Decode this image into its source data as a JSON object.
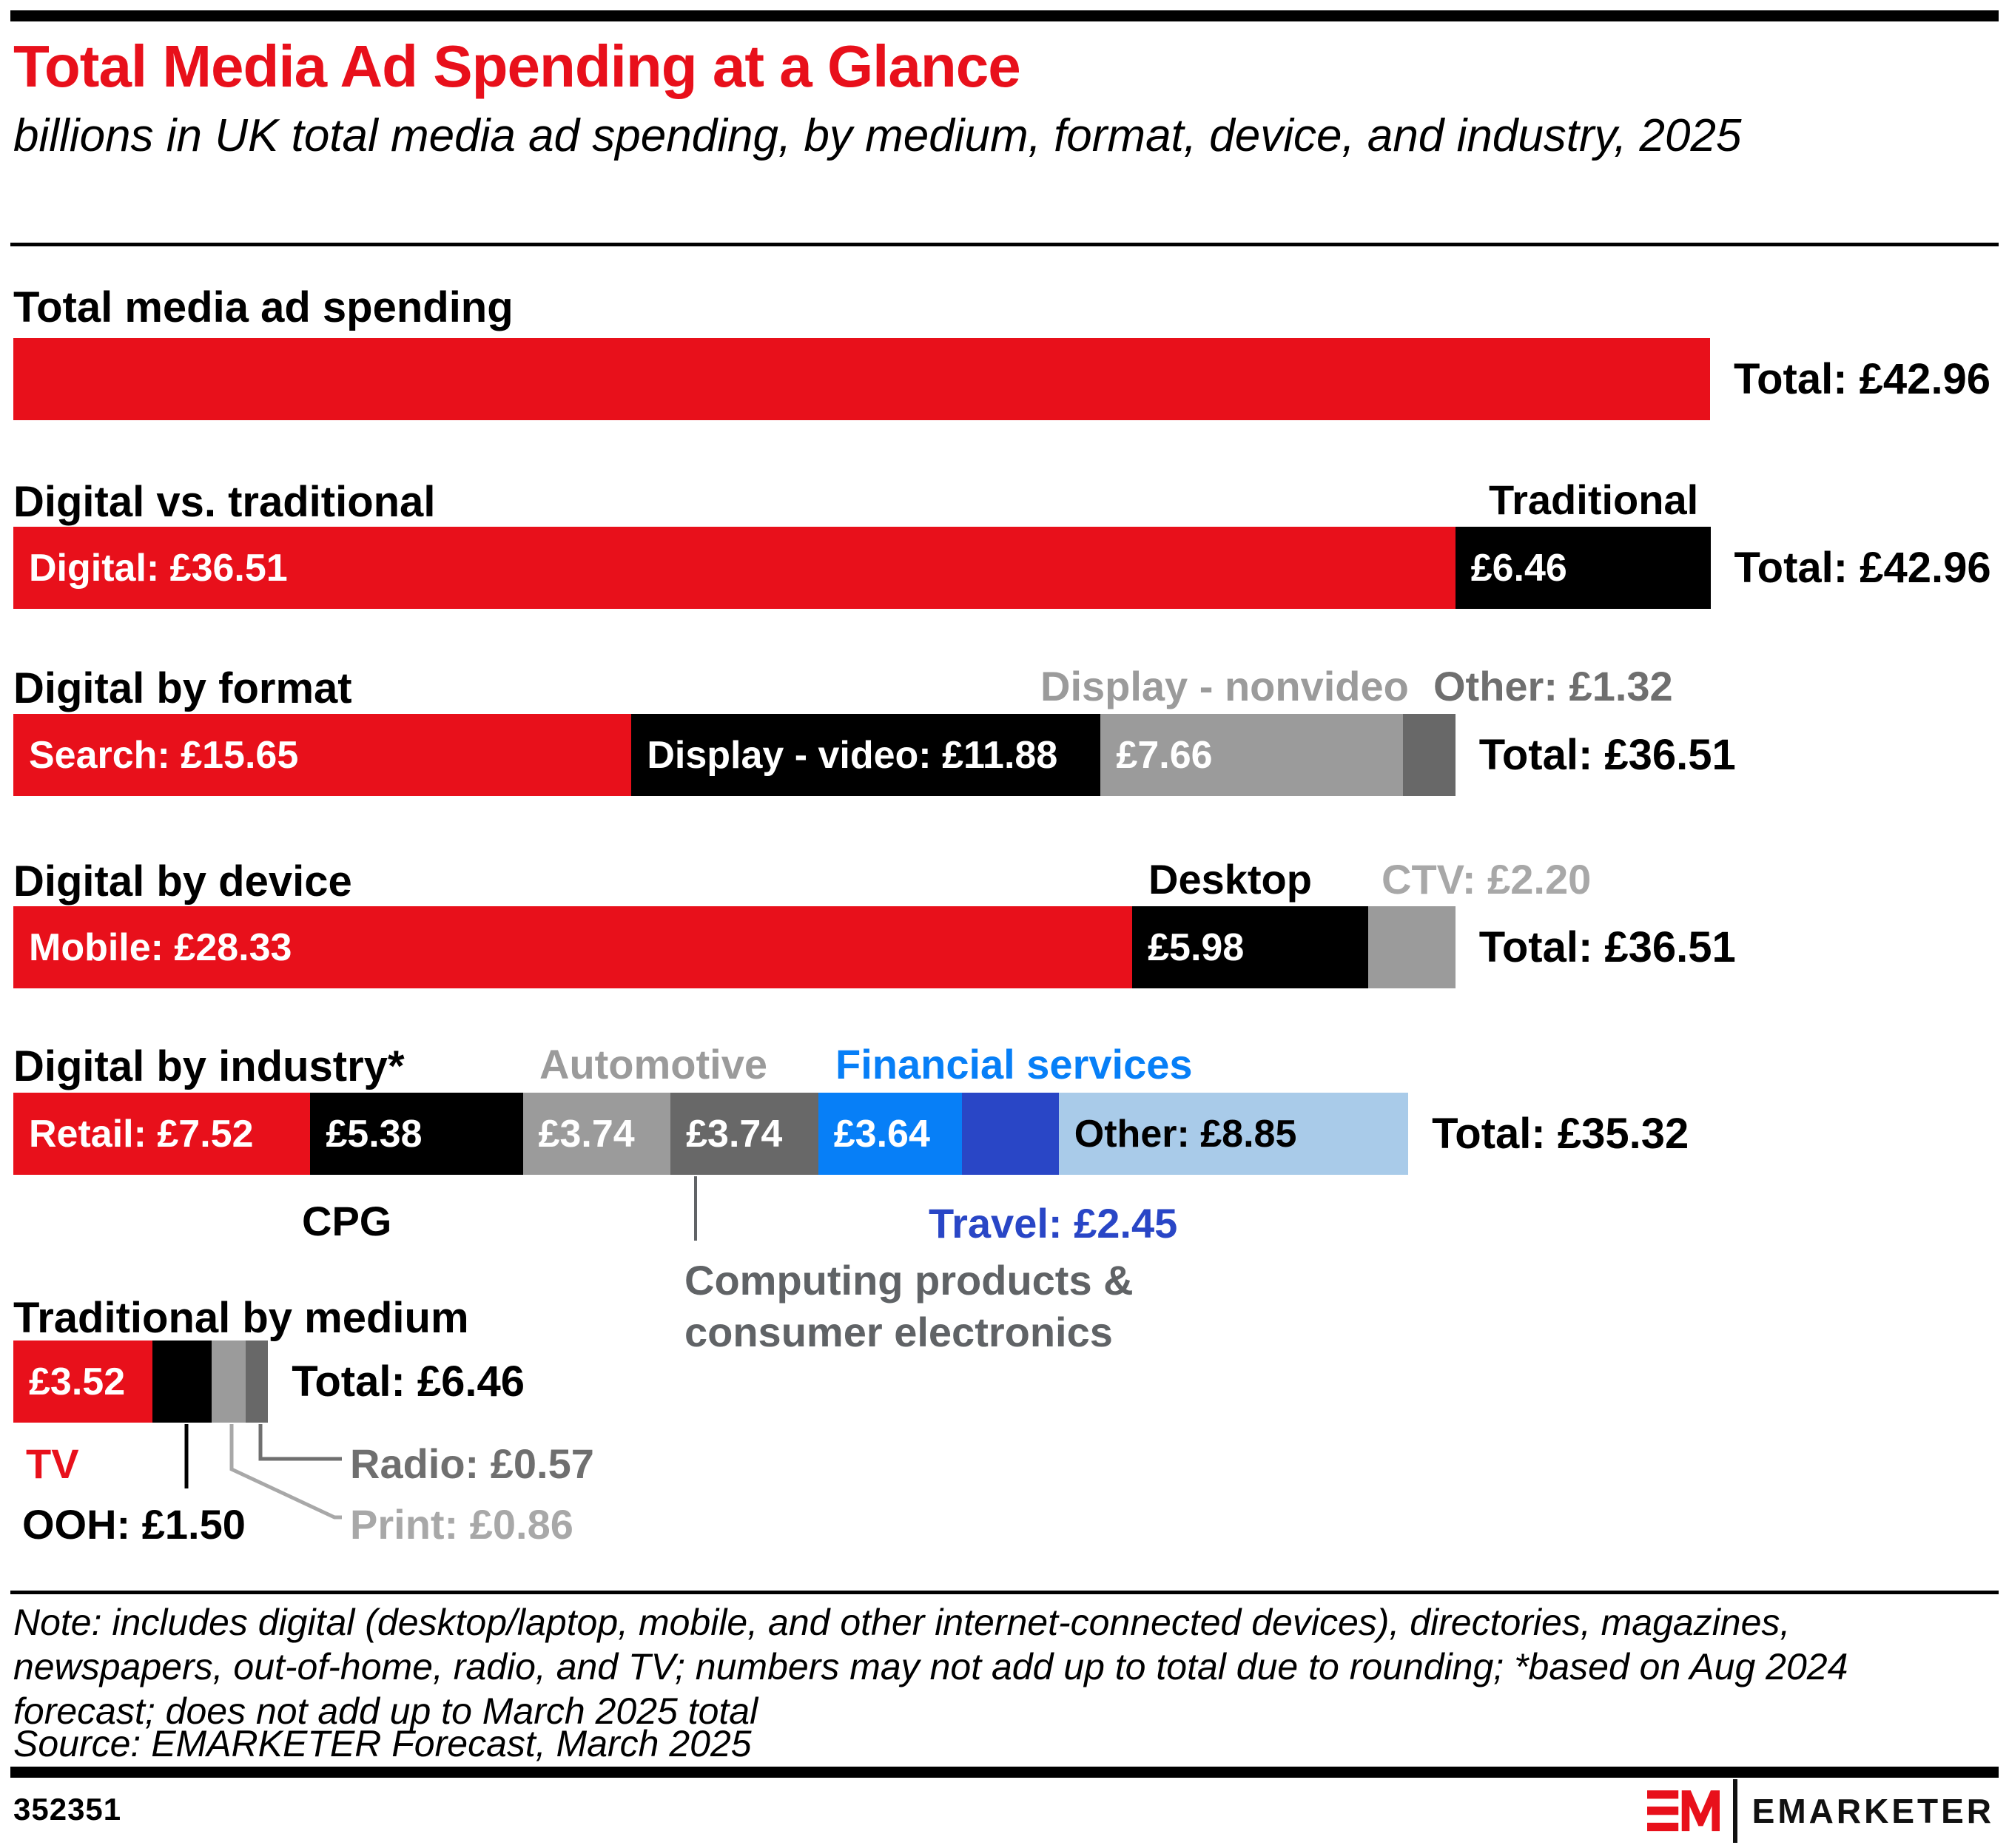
{
  "page": {
    "title": "Total Media Ad Spending at a Glance",
    "subtitle": "billions in UK total media ad spending, by medium, format, device, and industry, 2025",
    "note": "Note: includes digital (desktop/laptop, mobile, and other internet-connected devices), directories, magazines, newspapers, out-of-home, radio, and TV; numbers may not add up to total due to rounding; *based on Aug 2024 forecast; does not add up to March 2025 total",
    "source": "Source: EMARKETER Forecast, March 2025",
    "footer": {
      "chart_id": "352351",
      "brand": "EMARKETER"
    }
  },
  "colors": {
    "red": "#e8101b",
    "black": "#000000",
    "gray": "#9b9b9b",
    "dark_gray": "#686868",
    "blue": "#077ff7",
    "dark_blue": "#2946c6",
    "light_blue": "#a9cbe9",
    "label_gray": "#9b9b9b",
    "label_dark_gray": "#6f6f6f",
    "label_light_gray": "#a8a8a8",
    "computing_gray": "#606366"
  },
  "chart_data": {
    "type": "bar",
    "orientation": "horizontal-stacked",
    "unit": "billions GBP (£)",
    "scale_total": 42.96,
    "sections": [
      {
        "id": "total-media",
        "heading": "Total media ad spending",
        "total_label": "Total: £42.96",
        "total_value": 42.96,
        "segments": [
          {
            "name": "Total media",
            "value": 42.96,
            "color": "red",
            "label": ""
          }
        ]
      },
      {
        "id": "digital-vs-traditional",
        "heading": "Digital vs. traditional",
        "total_label": "Total: £42.96",
        "total_value": 42.96,
        "above_labels": [
          {
            "text": "Traditional"
          }
        ],
        "segments": [
          {
            "name": "Digital",
            "value": 36.51,
            "color": "red",
            "label": "Digital: £36.51"
          },
          {
            "name": "Traditional",
            "value": 6.46,
            "color": "black",
            "label": "£6.46"
          }
        ]
      },
      {
        "id": "digital-by-format",
        "heading": "Digital by format",
        "total_label": "Total: £36.51",
        "total_value": 36.51,
        "above_labels": [
          {
            "text": "Display - nonvideo"
          },
          {
            "text": "Other: £1.32"
          }
        ],
        "segments": [
          {
            "name": "Search",
            "value": 15.65,
            "color": "red",
            "label": "Search: £15.65"
          },
          {
            "name": "Display - video",
            "value": 11.88,
            "color": "black",
            "label": "Display - video: £11.88"
          },
          {
            "name": "Display - nonvideo",
            "value": 7.66,
            "color": "gray",
            "label": "£7.66"
          },
          {
            "name": "Other",
            "value": 1.32,
            "color": "dark_gray",
            "label": ""
          }
        ]
      },
      {
        "id": "digital-by-device",
        "heading": "Digital by device",
        "total_label": "Total: £36.51",
        "total_value": 36.51,
        "above_labels": [
          {
            "text": "Desktop"
          },
          {
            "text": "CTV: £2.20"
          }
        ],
        "segments": [
          {
            "name": "Mobile",
            "value": 28.33,
            "color": "red",
            "label": "Mobile: £28.33"
          },
          {
            "name": "Desktop",
            "value": 5.98,
            "color": "black",
            "label": "£5.98"
          },
          {
            "name": "CTV",
            "value": 2.2,
            "color": "gray",
            "label": ""
          }
        ]
      },
      {
        "id": "digital-by-industry",
        "heading": "Digital by industry*",
        "total_label": "Total: £35.32",
        "total_value": 35.32,
        "above_labels": [
          {
            "text": "Automotive"
          },
          {
            "text": "Financial services"
          }
        ],
        "below_labels": {
          "cpg": "CPG",
          "travel": "Travel: £2.45",
          "computing": "Computing products & consumer electronics"
        },
        "segments": [
          {
            "name": "Retail",
            "value": 7.52,
            "color": "red",
            "label": "Retail: £7.52"
          },
          {
            "name": "CPG",
            "value": 5.38,
            "color": "black",
            "label": "£5.38"
          },
          {
            "name": "Automotive",
            "value": 3.74,
            "color": "gray",
            "label": "£3.74"
          },
          {
            "name": "Computing products & consumer electronics",
            "value": 3.74,
            "color": "dark_gray",
            "label": "£3.74"
          },
          {
            "name": "Financial services",
            "value": 3.64,
            "color": "blue",
            "label": "£3.64"
          },
          {
            "name": "Travel",
            "value": 2.45,
            "color": "dark_blue",
            "label": ""
          },
          {
            "name": "Other",
            "value": 8.85,
            "color": "light_blue",
            "label": "Other: £8.85",
            "text_color": "#000000"
          }
        ]
      },
      {
        "id": "traditional-by-medium",
        "heading": "Traditional by medium",
        "total_label": "Total: £6.46",
        "total_value": 6.46,
        "below_labels": {
          "tv": "TV",
          "ooh": "OOH: £1.50",
          "radio": "Radio: £0.57",
          "print": "Print: £0.86"
        },
        "segments": [
          {
            "name": "TV",
            "value": 3.52,
            "color": "red",
            "label": "£3.52"
          },
          {
            "name": "OOH",
            "value": 1.5,
            "color": "black",
            "label": ""
          },
          {
            "name": "Print",
            "value": 0.86,
            "color": "gray",
            "label": ""
          },
          {
            "name": "Radio",
            "value": 0.57,
            "color": "dark_gray",
            "label": ""
          }
        ]
      }
    ]
  }
}
